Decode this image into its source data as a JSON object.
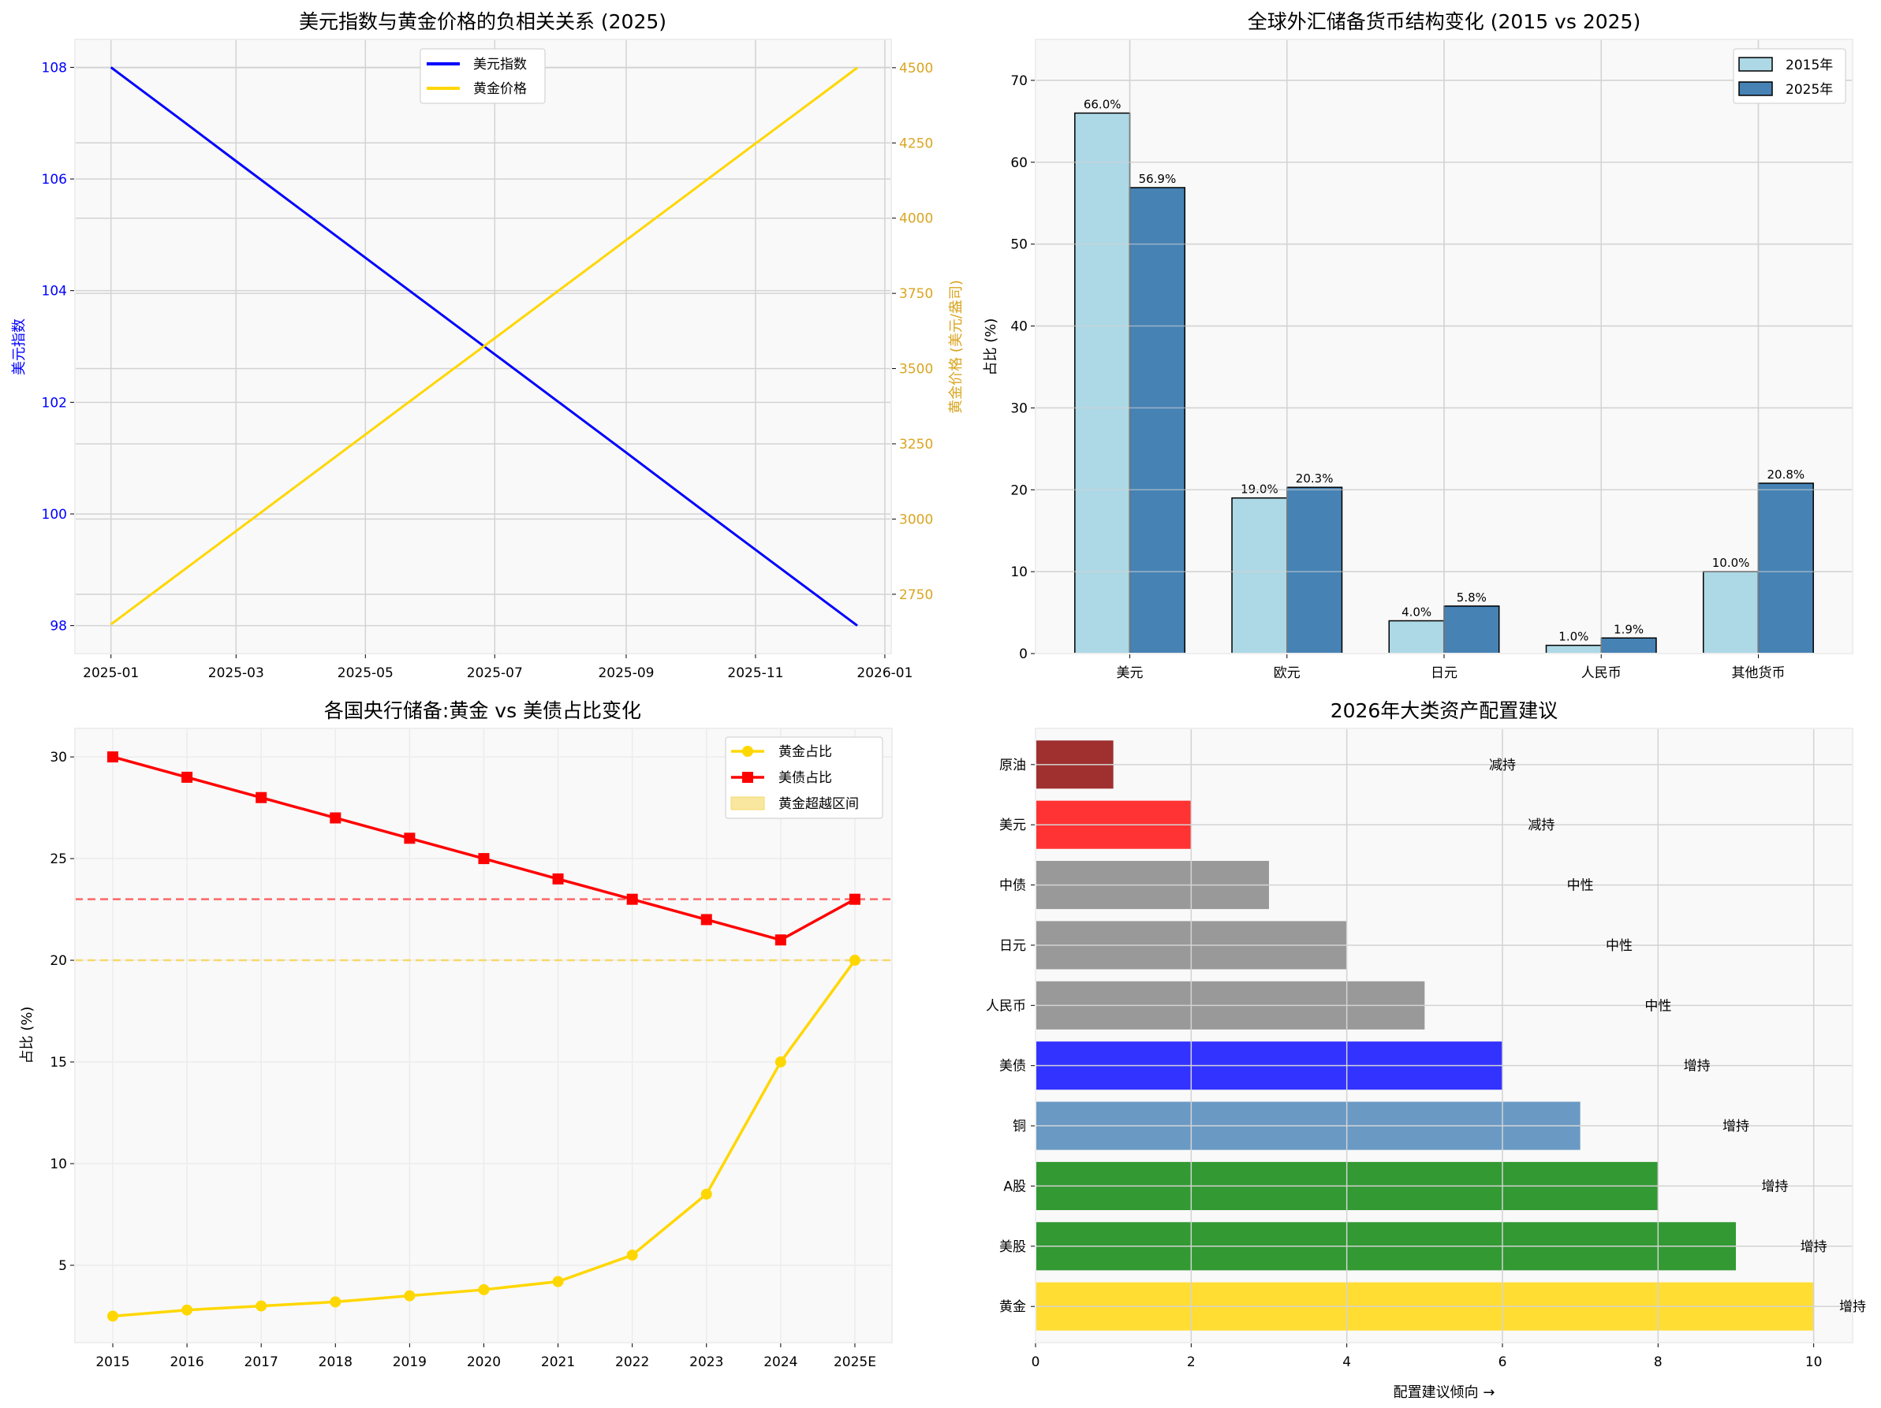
{
  "chart_data": [
    {
      "type": "line",
      "title": "美元指数与黄金价格的负相关关系 (2025)",
      "ylabel_left": "美元指数",
      "ylabel_right": "黄金价格 (美元/盎司)",
      "x_ticks": [
        "2025-01",
        "2025-03",
        "2025-05",
        "2025-07",
        "2025-09",
        "2025-11",
        "2026-01"
      ],
      "y_left_ticks": [
        98,
        100,
        102,
        104,
        106,
        108
      ],
      "y_right_ticks": [
        2750,
        3000,
        3250,
        3500,
        3750,
        4000,
        4250,
        4500
      ],
      "ylim_left": [
        97.5,
        108.5
      ],
      "ylim_right": [
        2553,
        4594
      ],
      "x": [
        "2025-01-01",
        "2025-02-01",
        "2025-03-01",
        "2025-04-01",
        "2025-05-01",
        "2025-06-01",
        "2025-07-01",
        "2025-08-01",
        "2025-09-01",
        "2025-10-01",
        "2025-11-01",
        "2025-12-01",
        "2025-12-19"
      ],
      "series": [
        {
          "name": "美元指数",
          "axis": "left",
          "color": "#0000ff",
          "values": [
            108,
            107.12,
            106.32,
            105.44,
            104.59,
            103.71,
            102.86,
            101.98,
            101.1,
            100.24,
            99.36,
            98.51,
            98
          ]
        },
        {
          "name": "黄金价格",
          "axis": "right",
          "color": "#ffd700",
          "values": [
            2650,
            2813,
            2960,
            3123,
            3281,
            3444,
            3601,
            3764,
            3927,
            4085,
            4248,
            4405,
            4500
          ]
        }
      ],
      "left_axis_color": "#0000ff",
      "right_axis_color": "#daa520",
      "grid": true,
      "legend": "top-center"
    },
    {
      "type": "bar",
      "title": "全球外汇储备货币结构变化 (2015 vs 2025)",
      "ylabel": "占比 (%)",
      "categories": [
        "美元",
        "欧元",
        "日元",
        "人民币",
        "其他货币"
      ],
      "y_ticks": [
        0,
        10,
        20,
        30,
        40,
        50,
        60,
        70
      ],
      "ylim": [
        0,
        75
      ],
      "series": [
        {
          "name": "2015年",
          "color": "#add8e6",
          "values": [
            66.0,
            19.0,
            4.0,
            1.0,
            10.0
          ],
          "labels": [
            "66.0%",
            "19.0%",
            "4.0%",
            "1.0%",
            "10.0%"
          ]
        },
        {
          "name": "2025年",
          "color": "#4682b4",
          "values": [
            56.9,
            20.3,
            5.8,
            1.9,
            20.8
          ],
          "labels": [
            "56.9%",
            "20.3%",
            "5.8%",
            "1.9%",
            "20.8%"
          ]
        }
      ],
      "grid": true,
      "legend": "top-right"
    },
    {
      "type": "line",
      "title": "各国央行储备:黄金 vs 美债占比变化",
      "ylabel": "占比 (%)",
      "categories": [
        "2015",
        "2016",
        "2017",
        "2018",
        "2019",
        "2020",
        "2021",
        "2022",
        "2023",
        "2024",
        "2025E"
      ],
      "y_ticks": [
        5,
        10,
        15,
        20,
        25,
        30
      ],
      "ylim": [
        1.2,
        31.4
      ],
      "series": [
        {
          "name": "黄金占比",
          "color": "#ffd700",
          "marker": "circle",
          "values": [
            2.5,
            2.8,
            3.0,
            3.2,
            3.5,
            3.8,
            4.2,
            5.5,
            8.5,
            15,
            20
          ]
        },
        {
          "name": "美债占比",
          "color": "#ff0000",
          "marker": "square",
          "values": [
            30,
            29,
            28,
            27,
            26,
            25,
            24,
            23,
            22,
            21,
            23
          ]
        }
      ],
      "reference_lines": [
        {
          "value": 23,
          "color": "#ff6666",
          "style": "dashed"
        },
        {
          "value": 20,
          "color": "#f5d96b",
          "style": "dashed"
        }
      ],
      "legend_extra": {
        "name": "黄金超越区间",
        "color": "#f9e79f"
      },
      "grid": true,
      "legend": "top-right"
    },
    {
      "type": "bar",
      "orientation": "horizontal",
      "title": "2026年大类资产配置建议",
      "xlabel": "配置建议倾向 →",
      "x_ticks": [
        0,
        2,
        4,
        6,
        8,
        10
      ],
      "xlim": [
        0,
        10.5
      ],
      "categories": [
        "黄金",
        "美股",
        "A股",
        "铜",
        "美债",
        "人民币",
        "日元",
        "中债",
        "美元",
        "原油"
      ],
      "values": [
        10,
        9,
        8,
        7,
        6,
        5,
        4,
        3,
        2,
        1
      ],
      "labels": [
        "增持",
        "增持",
        "增持",
        "增持",
        "增持",
        "中性",
        "中性",
        "中性",
        "减持",
        "减持"
      ],
      "colors": [
        "#ffdd33",
        "#339933",
        "#339933",
        "#6a9ac4",
        "#3333ff",
        "#999999",
        "#999999",
        "#999999",
        "#ff3333",
        "#a03030"
      ],
      "grid": true
    }
  ]
}
